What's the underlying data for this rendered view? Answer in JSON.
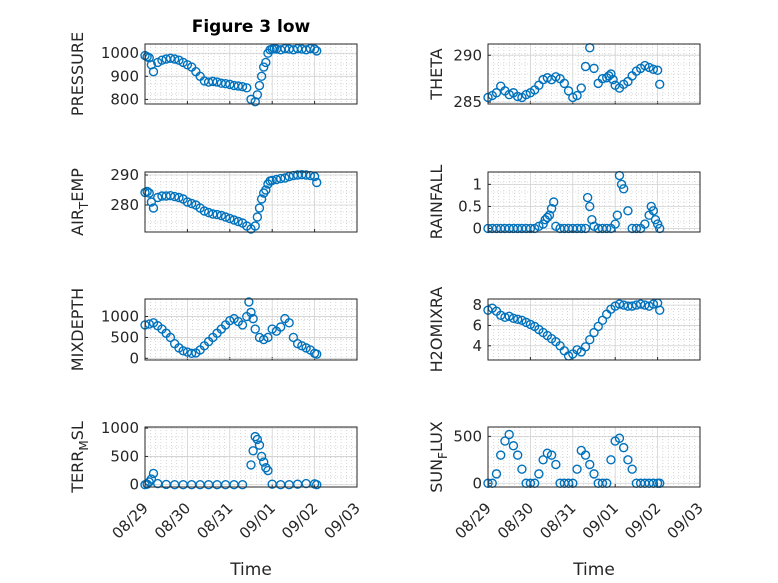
{
  "figure_title": "Figure 3 low",
  "colors": {
    "marker": "#0072BD",
    "axes": "#262626",
    "grid": "#d0d0d0"
  },
  "chart_data": [
    {
      "type": "scatter",
      "ylabel": "PRESSURE",
      "ylim": [
        780,
        1040
      ],
      "yticks": [
        800,
        900,
        1000
      ],
      "ytick_labels": [
        "800",
        "900",
        "1000"
      ],
      "xlim": [
        0,
        5
      ],
      "xticks": [
        0,
        1,
        2,
        3,
        4,
        5
      ],
      "x": [
        0,
        0.05,
        0.1,
        0.15,
        0.2,
        0.3,
        0.4,
        0.5,
        0.6,
        0.7,
        0.8,
        0.9,
        1.0,
        1.1,
        1.2,
        1.3,
        1.4,
        1.5,
        1.6,
        1.7,
        1.8,
        1.9,
        2.0,
        2.1,
        2.2,
        2.3,
        2.4,
        2.5,
        2.6,
        2.65,
        2.7,
        2.75,
        2.8,
        2.85,
        2.9,
        2.95,
        3.0,
        3.05,
        3.1,
        3.2,
        3.3,
        3.4,
        3.5,
        3.6,
        3.7,
        3.8,
        3.9,
        4.0,
        4.05
      ],
      "y": [
        990,
        985,
        980,
        950,
        920,
        960,
        970,
        975,
        978,
        975,
        970,
        960,
        950,
        940,
        920,
        900,
        880,
        875,
        878,
        875,
        870,
        868,
        865,
        860,
        858,
        855,
        850,
        800,
        790,
        820,
        860,
        900,
        940,
        960,
        1000,
        1015,
        1018,
        1020,
        1018,
        1015,
        1020,
        1018,
        1015,
        1020,
        1018,
        1015,
        1020,
        1018,
        1010
      ]
    },
    {
      "type": "scatter",
      "ylabel": "THETA",
      "ylim": [
        284.8,
        291.2
      ],
      "yticks": [
        285,
        290
      ],
      "ytick_labels": [
        "285",
        "290"
      ],
      "xlim": [
        0,
        5
      ],
      "xticks": [
        0,
        1,
        2,
        3,
        4,
        5
      ],
      "x": [
        0,
        0.1,
        0.2,
        0.3,
        0.4,
        0.5,
        0.6,
        0.7,
        0.8,
        0.9,
        1.0,
        1.1,
        1.2,
        1.3,
        1.4,
        1.5,
        1.6,
        1.7,
        1.8,
        1.9,
        2.0,
        2.1,
        2.2,
        2.3,
        2.4,
        2.5,
        2.6,
        2.7,
        2.8,
        2.85,
        2.9,
        2.95,
        3.0,
        3.1,
        3.2,
        3.3,
        3.4,
        3.5,
        3.6,
        3.7,
        3.8,
        3.9,
        4.0,
        4.05
      ],
      "y": [
        285.5,
        285.7,
        286.0,
        286.7,
        286.2,
        285.8,
        286.0,
        285.6,
        285.5,
        285.8,
        286.0,
        286.3,
        286.8,
        287.4,
        287.6,
        287.4,
        287.7,
        287.5,
        287.0,
        286.2,
        285.5,
        285.7,
        286.5,
        288.8,
        290.8,
        288.6,
        287.0,
        287.5,
        287.6,
        287.8,
        288.0,
        287.4,
        286.8,
        286.5,
        286.9,
        287.2,
        287.8,
        288.3,
        288.6,
        288.9,
        288.7,
        288.5,
        288.4,
        286.9
      ]
    },
    {
      "type": "scatter",
      "ylabel": "AIR_TEMP",
      "ylim": [
        271,
        291
      ],
      "yticks": [
        280,
        290
      ],
      "ytick_labels": [
        "280",
        "290"
      ],
      "xlim": [
        0,
        5
      ],
      "xticks": [
        0,
        1,
        2,
        3,
        4,
        5
      ],
      "x": [
        0,
        0.05,
        0.1,
        0.15,
        0.2,
        0.3,
        0.4,
        0.5,
        0.6,
        0.7,
        0.8,
        0.9,
        1.0,
        1.1,
        1.2,
        1.3,
        1.4,
        1.5,
        1.6,
        1.7,
        1.8,
        1.9,
        2.0,
        2.1,
        2.2,
        2.3,
        2.4,
        2.5,
        2.6,
        2.65,
        2.7,
        2.75,
        2.8,
        2.85,
        2.9,
        2.95,
        3.0,
        3.1,
        3.2,
        3.3,
        3.4,
        3.5,
        3.6,
        3.7,
        3.8,
        3.9,
        4.0,
        4.05
      ],
      "y": [
        284.2,
        284.5,
        284.0,
        281.0,
        279.0,
        282.5,
        283.0,
        283.0,
        283.1,
        282.8,
        282.5,
        282.0,
        281.0,
        280.5,
        280.0,
        279.0,
        278.0,
        277.5,
        277.0,
        276.8,
        276.5,
        276.0,
        275.5,
        275.0,
        274.5,
        274.0,
        273.0,
        272.0,
        273.0,
        276.0,
        279.0,
        282.0,
        284.0,
        285.0,
        287.0,
        288.0,
        288.2,
        288.5,
        288.8,
        289.0,
        289.5,
        289.8,
        290.0,
        290.1,
        290.0,
        289.8,
        289.5,
        287.5
      ]
    },
    {
      "type": "scatter",
      "ylabel": "RAINFALL",
      "ylim": [
        -0.08,
        1.28
      ],
      "yticks": [
        0,
        0.5,
        1
      ],
      "ytick_labels": [
        "0",
        "0.5",
        "1"
      ],
      "xlim": [
        0,
        5
      ],
      "xticks": [
        0,
        1,
        2,
        3,
        4,
        5
      ],
      "x": [
        0,
        0.1,
        0.2,
        0.3,
        0.4,
        0.5,
        0.6,
        0.7,
        0.8,
        0.9,
        1.0,
        1.1,
        1.2,
        1.3,
        1.35,
        1.4,
        1.45,
        1.5,
        1.55,
        1.6,
        1.7,
        1.8,
        1.9,
        2.0,
        2.1,
        2.2,
        2.3,
        2.35,
        2.4,
        2.45,
        2.5,
        2.6,
        2.7,
        2.8,
        2.9,
        3.0,
        3.05,
        3.1,
        3.15,
        3.2,
        3.3,
        3.4,
        3.5,
        3.6,
        3.7,
        3.8,
        3.85,
        3.9,
        3.95,
        4.0,
        4.05
      ],
      "y": [
        0,
        0,
        0,
        0,
        0,
        0,
        0,
        0,
        0,
        0,
        0,
        0,
        0.05,
        0.1,
        0.2,
        0.25,
        0.3,
        0.45,
        0.6,
        0.05,
        0,
        0,
        0,
        0,
        0,
        0,
        0,
        0.7,
        0.5,
        0.2,
        0.05,
        0,
        0,
        0,
        0,
        0.1,
        0.3,
        1.2,
        1.0,
        0.9,
        0.4,
        0,
        0,
        0,
        0.1,
        0.3,
        0.5,
        0.4,
        0.2,
        0.1,
        0
      ]
    },
    {
      "type": "scatter",
      "ylabel": "MIXDEPTH",
      "ylim": [
        -40,
        1420
      ],
      "yticks": [
        0,
        500,
        1000
      ],
      "ytick_labels": [
        "0",
        "500",
        "1000"
      ],
      "xlim": [
        0,
        5
      ],
      "xticks": [
        0,
        1,
        2,
        3,
        4,
        5
      ],
      "x": [
        0,
        0.1,
        0.2,
        0.3,
        0.4,
        0.5,
        0.6,
        0.7,
        0.8,
        0.9,
        1.0,
        1.1,
        1.2,
        1.3,
        1.4,
        1.5,
        1.6,
        1.7,
        1.8,
        1.9,
        2.0,
        2.1,
        2.2,
        2.3,
        2.4,
        2.45,
        2.5,
        2.55,
        2.6,
        2.7,
        2.8,
        2.9,
        3.0,
        3.1,
        3.2,
        3.3,
        3.4,
        3.5,
        3.6,
        3.7,
        3.8,
        3.9,
        4.0,
        4.05
      ],
      "y": [
        800,
        820,
        850,
        780,
        700,
        600,
        500,
        350,
        250,
        180,
        150,
        120,
        130,
        200,
        300,
        400,
        500,
        600,
        700,
        800,
        900,
        950,
        880,
        800,
        1000,
        1350,
        1100,
        950,
        700,
        500,
        450,
        500,
        700,
        650,
        750,
        950,
        850,
        500,
        350,
        300,
        250,
        200,
        120,
        100
      ]
    },
    {
      "type": "scatter",
      "ylabel": "H2OMIXRA",
      "ylim": [
        2.6,
        8.6
      ],
      "yticks": [
        4,
        6,
        8
      ],
      "ytick_labels": [
        "4",
        "6",
        "8"
      ],
      "xlim": [
        0,
        5
      ],
      "xticks": [
        0,
        1,
        2,
        3,
        4,
        5
      ],
      "x": [
        0,
        0.1,
        0.2,
        0.3,
        0.4,
        0.5,
        0.6,
        0.7,
        0.8,
        0.9,
        1.0,
        1.1,
        1.2,
        1.3,
        1.4,
        1.5,
        1.6,
        1.7,
        1.8,
        1.9,
        2.0,
        2.1,
        2.2,
        2.3,
        2.4,
        2.5,
        2.6,
        2.7,
        2.8,
        2.9,
        3.0,
        3.1,
        3.2,
        3.3,
        3.4,
        3.5,
        3.6,
        3.7,
        3.8,
        3.9,
        4.0,
        4.05
      ],
      "y": [
        7.5,
        7.7,
        7.4,
        7.0,
        6.8,
        6.9,
        6.7,
        6.6,
        6.5,
        6.3,
        6.1,
        5.9,
        5.6,
        5.3,
        5.0,
        4.7,
        4.4,
        4.0,
        3.5,
        3.0,
        3.2,
        3.6,
        3.4,
        3.9,
        4.6,
        5.3,
        5.9,
        6.5,
        7.1,
        7.6,
        7.9,
        8.1,
        8.0,
        7.9,
        7.9,
        8.0,
        8.1,
        8.0,
        7.9,
        8.1,
        8.2,
        7.5
      ]
    },
    {
      "type": "scatter",
      "ylabel": "TERR_MSL",
      "ylim": [
        -40,
        1020
      ],
      "yticks": [
        0,
        500,
        1000
      ],
      "ytick_labels": [
        "0",
        "500",
        "1000"
      ],
      "xlim": [
        0,
        5
      ],
      "xticks": [
        0,
        1,
        2,
        3,
        4,
        5
      ],
      "x": [
        0,
        0.05,
        0.1,
        0.15,
        0.2,
        0.3,
        0.5,
        0.7,
        0.9,
        1.1,
        1.3,
        1.5,
        1.7,
        1.9,
        2.1,
        2.3,
        2.5,
        2.55,
        2.6,
        2.65,
        2.7,
        2.75,
        2.8,
        2.85,
        2.9,
        3.0,
        3.2,
        3.4,
        3.6,
        3.8,
        4.0,
        4.05
      ],
      "y": [
        0,
        10,
        50,
        100,
        200,
        20,
        5,
        0,
        0,
        0,
        0,
        0,
        0,
        0,
        0,
        0,
        350,
        600,
        850,
        800,
        700,
        500,
        400,
        300,
        250,
        10,
        0,
        0,
        10,
        20,
        15,
        0
      ]
    },
    {
      "type": "scatter",
      "ylabel": "SUN_FLUX",
      "ylim": [
        -40,
        600
      ],
      "yticks": [
        0,
        500
      ],
      "ytick_labels": [
        "0",
        "500"
      ],
      "xlim": [
        0,
        5
      ],
      "xticks": [
        0,
        1,
        2,
        3,
        4,
        5
      ],
      "x": [
        0,
        0.1,
        0.2,
        0.3,
        0.4,
        0.5,
        0.6,
        0.7,
        0.8,
        0.9,
        1.0,
        1.1,
        1.2,
        1.3,
        1.4,
        1.5,
        1.6,
        1.7,
        1.8,
        1.9,
        2.0,
        2.1,
        2.2,
        2.3,
        2.4,
        2.5,
        2.6,
        2.7,
        2.8,
        2.9,
        3.0,
        3.1,
        3.2,
        3.3,
        3.4,
        3.5,
        3.6,
        3.7,
        3.8,
        3.9,
        4.0,
        4.05
      ],
      "y": [
        0,
        0,
        100,
        300,
        450,
        520,
        400,
        300,
        150,
        0,
        0,
        0,
        100,
        250,
        320,
        300,
        200,
        0,
        0,
        0,
        0,
        150,
        350,
        300,
        200,
        100,
        0,
        0,
        0,
        250,
        450,
        480,
        380,
        250,
        150,
        0,
        0,
        0,
        0,
        0,
        0,
        0
      ]
    }
  ],
  "x_axis": {
    "label": "Time",
    "tick_labels": [
      "08/29",
      "08/30",
      "08/31",
      "09/01",
      "09/02",
      "09/03"
    ]
  }
}
